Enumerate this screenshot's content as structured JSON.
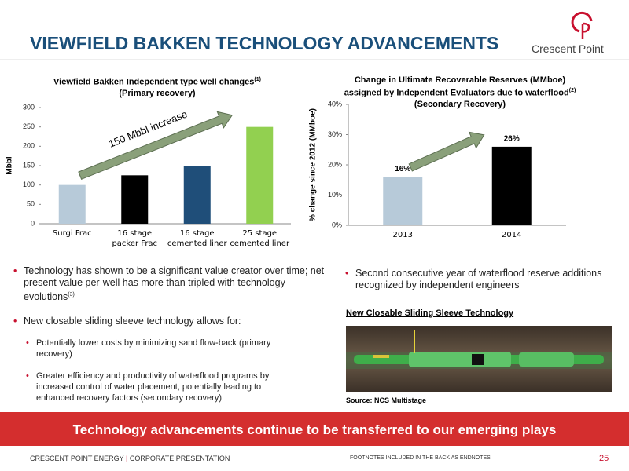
{
  "header": {
    "title": "VIEWFIELD BAKKEN TECHNOLOGY ADVANCEMENTS",
    "logo_text": "Crescent Point"
  },
  "chart_data": [
    {
      "type": "bar",
      "title": "Viewfield Bakken Independent type well changes",
      "title_note": "(1)",
      "subtitle": "(Primary recovery)",
      "y_label": "Mbbl",
      "categories": [
        "Surgi Frac",
        "16 stage packer Frac",
        "16 stage cemented liner",
        "25 stage cemented liner"
      ],
      "values": [
        100,
        125,
        150,
        250
      ],
      "colors": [
        "#b7cad9",
        "#000000",
        "#1f4e79",
        "#92d050"
      ],
      "ylim": [
        0,
        300
      ],
      "yticks": [
        0,
        50,
        100,
        150,
        200,
        250,
        300
      ],
      "annotation": "150 Mbbl increase"
    },
    {
      "type": "bar",
      "title": "Change in Ultimate Recoverable Reserves (MMboe) assigned by Independent Evaluators due to waterflood",
      "title_note": "(2)",
      "subtitle": "(Secondary Recovery)",
      "y_label": "% change since 2012 (MMboe)",
      "categories": [
        "2013",
        "2014"
      ],
      "values": [
        16,
        26
      ],
      "value_labels": [
        "16%",
        "26%"
      ],
      "colors": [
        "#b7cad9",
        "#000000"
      ],
      "ylim": [
        0,
        40
      ],
      "yticks": [
        {
          "value": 0,
          "label": "0%"
        },
        {
          "value": 10,
          "label": "10%"
        },
        {
          "value": 20,
          "label": "20%"
        },
        {
          "value": 30,
          "label": "30%"
        },
        {
          "value": 40,
          "label": "40%"
        }
      ]
    }
  ],
  "left_bullets": [
    {
      "text": "Technology has shown to be a significant value creator over time; net present value per-well has more than tripled with technology evolutions",
      "note": "(3)"
    },
    {
      "text": "New closable sliding sleeve technology allows for:",
      "sub": [
        "Potentially lower costs by minimizing sand flow-back (primary recovery)",
        "Greater efficiency and productivity of waterflood  programs by increased control of water placement, potentially leading to enhanced recovery factors (secondary recovery)"
      ]
    }
  ],
  "right_bullet": "Second consecutive year of waterflood reserve additions recognized by independent engineers",
  "image_title": "New Closable Sliding Sleeve Technology",
  "image_source": "Source: NCS Multistage",
  "banner": "Technology advancements continue to be transferred to our emerging plays",
  "footer": {
    "company": "CRESCENT POINT ENERGY",
    "separator": "|",
    "section": "CORPORATE PRESENTATION",
    "note": "FOOTNOTES INCLUDED IN THE BACK AS ENDNOTES",
    "page": "25"
  }
}
